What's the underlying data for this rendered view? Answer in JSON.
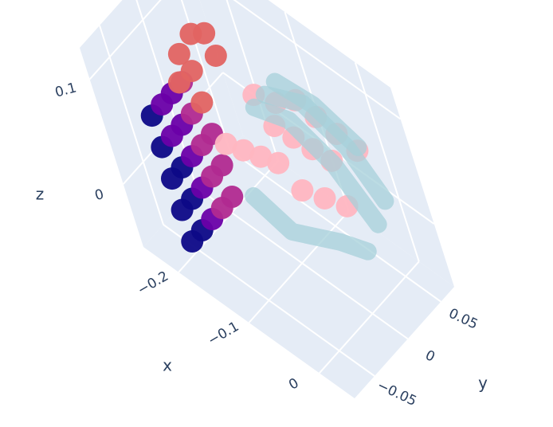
{
  "chart_data": {
    "type": "scatter3d",
    "xaxis_title": "x",
    "yaxis_title": "y",
    "zaxis_title": "z",
    "xlim": [
      -0.25,
      0.05
    ],
    "ylim": [
      -0.08,
      0.07
    ],
    "zlim": [
      -0.06,
      0.13
    ],
    "xticks": [
      {
        "value": -0.2,
        "label": "−0.2"
      },
      {
        "value": -0.1,
        "label": "−0.1"
      },
      0
    ],
    "yticks": [
      {
        "value": -0.05,
        "label": "−0.05"
      },
      0,
      0.05
    ],
    "zticks": [
      0,
      0.1
    ],
    "background": "#e5ecf6",
    "grid_color": "#ffffff",
    "series": [
      {
        "mode": "markers",
        "colorscale": [
          "#0d0887",
          "#6a00a8",
          "#b12a90",
          "#e16462"
        ],
        "x": [
          -0.19,
          -0.19,
          -0.19,
          -0.19,
          -0.19,
          -0.19,
          -0.19,
          -0.19,
          -0.19,
          -0.19,
          -0.19,
          -0.19,
          -0.19,
          -0.19,
          -0.19,
          -0.19,
          -0.19,
          -0.19,
          -0.19,
          -0.19,
          -0.19,
          -0.19,
          -0.19,
          -0.19,
          -0.19,
          -0.17,
          -0.17,
          -0.17,
          -0.17,
          -0.17
        ],
        "y": [
          -0.06,
          -0.06,
          -0.06,
          -0.06,
          -0.06,
          -0.045,
          -0.045,
          -0.045,
          -0.045,
          -0.045,
          -0.03,
          -0.03,
          -0.03,
          -0.03,
          -0.03,
          -0.015,
          -0.015,
          -0.015,
          -0.015,
          -0.015,
          0,
          0,
          0,
          0,
          0,
          -0.03,
          -0.02,
          0,
          0.015,
          0.02
        ],
        "z": [
          -0.04,
          -0.01,
          0.02,
          0.05,
          0.08,
          -0.04,
          -0.01,
          0.02,
          0.05,
          0.08,
          -0.04,
          -0.01,
          0.02,
          0.05,
          0.08,
          -0.04,
          -0.01,
          0.02,
          0.05,
          0.08,
          -0.04,
          -0.01,
          0.02,
          0.05,
          0.08,
          0.1,
          0.12,
          0.125,
          0.115,
          0.09
        ]
      },
      {
        "mode": "markers",
        "color": "#ffb6c1",
        "x": [
          -0.17,
          -0.15,
          -0.13,
          -0.11,
          -0.12,
          -0.1,
          -0.08,
          -0.06,
          -0.1,
          -0.08,
          -0.06,
          -0.04,
          -0.09,
          -0.07,
          -0.05,
          -0.14,
          -0.12
        ],
        "y": [
          0.0,
          0.005,
          0.01,
          0.015,
          0.03,
          0.035,
          0.04,
          0.045,
          0.05,
          0.055,
          0.06,
          0.065,
          0.02,
          0.03,
          0.04,
          0.03,
          0.04
        ],
        "z": [
          0.02,
          0.02,
          0.02,
          0.02,
          0.04,
          0.035,
          0.03,
          0.025,
          0.06,
          0.05,
          0.04,
          0.03,
          0.0,
          -0.005,
          -0.01,
          0.06,
          0.055
        ]
      },
      {
        "mode": "lines",
        "color": "#a6d0da",
        "x": [
          -0.13,
          -0.09,
          -0.05,
          -0.02,
          null,
          -0.12,
          -0.08,
          -0.04,
          -0.01,
          null,
          -0.15,
          -0.1,
          -0.05,
          -0.03,
          null,
          -0.11,
          -0.07,
          -0.02
        ],
        "y": [
          0.02,
          0.03,
          0.04,
          0.05,
          null,
          0.03,
          0.045,
          0.055,
          0.06,
          null,
          0.0,
          0.0,
          0.02,
          0.035,
          null,
          0.04,
          0.05,
          0.055
        ],
        "z": [
          0.06,
          0.06,
          0.03,
          -0.02,
          null,
          0.07,
          0.07,
          0.04,
          0.0,
          null,
          -0.02,
          -0.03,
          -0.03,
          -0.04,
          null,
          0.08,
          0.07,
          0.05
        ]
      }
    ]
  }
}
